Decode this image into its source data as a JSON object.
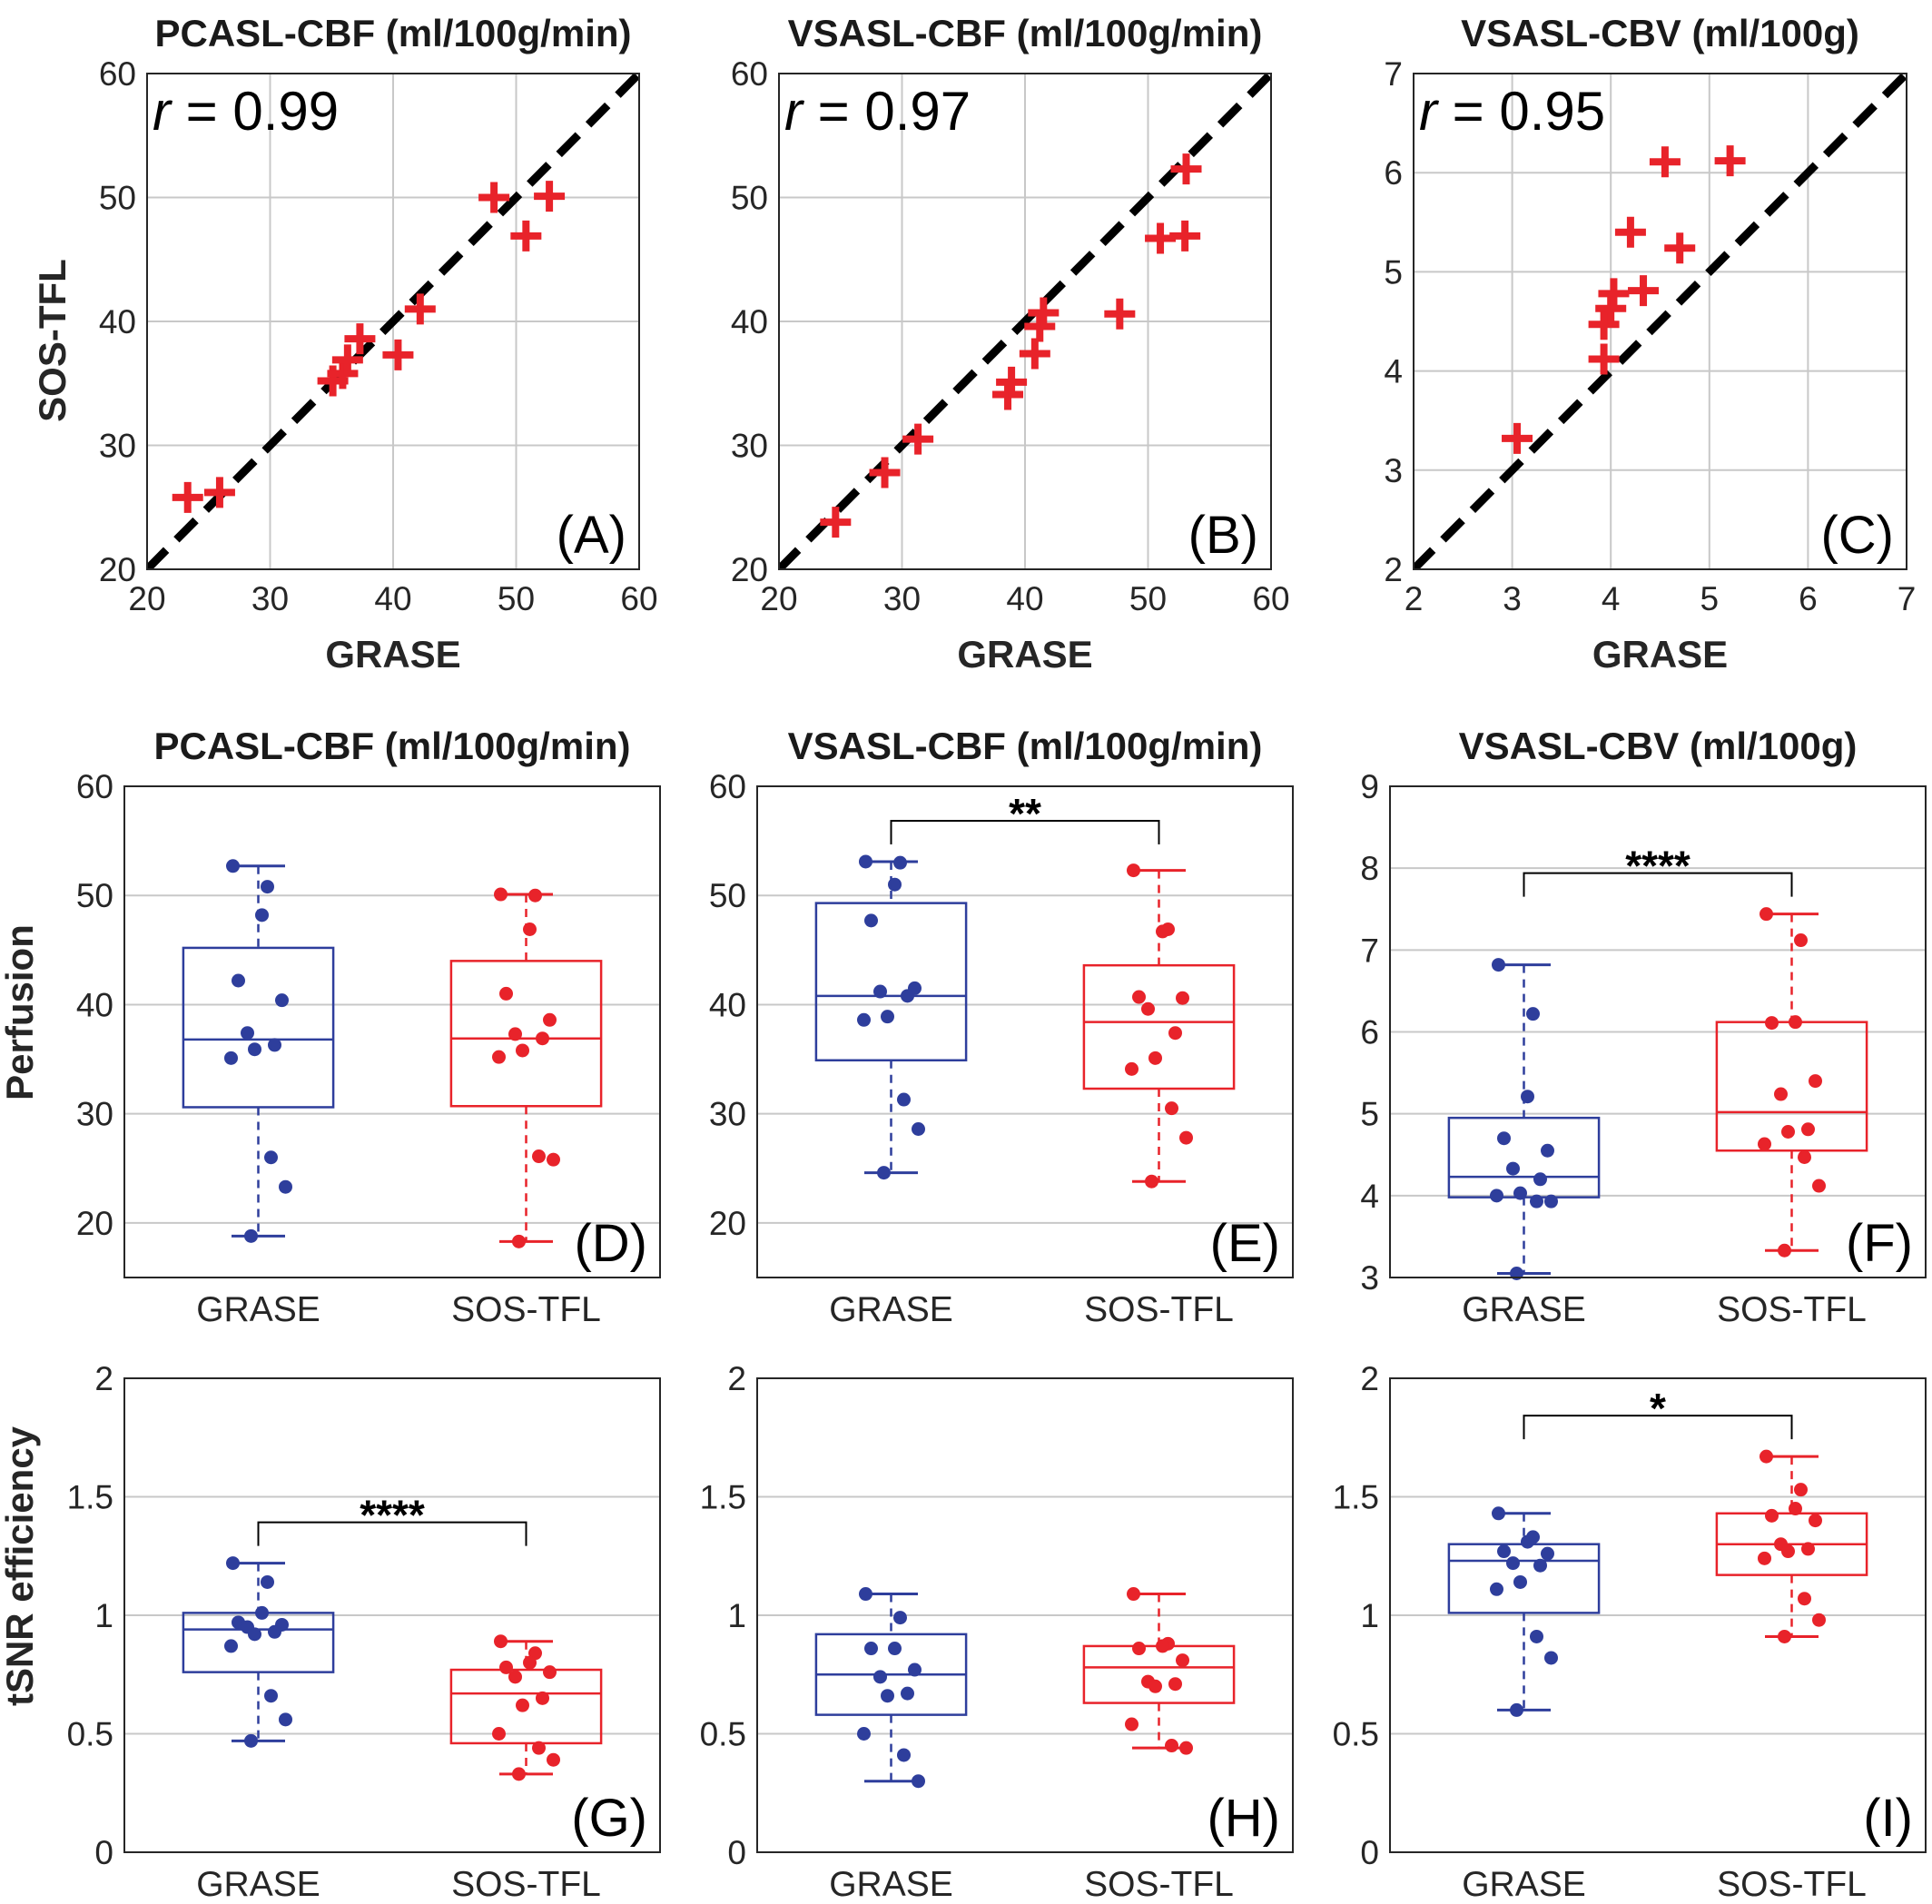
{
  "colors": {
    "grase": "#2e3e9c",
    "sos": "#e8232a",
    "grid": "#c8c8c8",
    "identity": "#000000"
  },
  "row_labels": {
    "scatter_y": "SOS-TFL",
    "perfusion_y": "Perfusion",
    "tsnr_y": "tSNR efficiency"
  },
  "chart_data": [
    {
      "id": "A",
      "type": "scatter",
      "panel_label": "(A)",
      "title": "PCASL-CBF (ml/100g/min)",
      "xlabel": "GRASE",
      "ylabel": "SOS-TFL",
      "xlim": [
        20,
        60
      ],
      "ylim": [
        20,
        60
      ],
      "xticks": [
        20,
        30,
        40,
        50,
        60
      ],
      "yticks": [
        20,
        30,
        40,
        50,
        60
      ],
      "grid": true,
      "r_label": "r",
      "r_value": "= 0.99",
      "identity_line": true,
      "x": [
        23.3,
        25.9,
        35.1,
        35.9,
        36.3,
        37.3,
        40.4,
        42.2,
        48.2,
        50.8,
        52.7
      ],
      "y": [
        25.8,
        26.2,
        35.2,
        35.8,
        36.9,
        38.6,
        37.3,
        41.0,
        50.0,
        46.9,
        50.1
      ]
    },
    {
      "id": "B",
      "type": "scatter",
      "panel_label": "(B)",
      "title": "VSASL-CBF (ml/100g/min)",
      "xlabel": "GRASE",
      "ylabel": "",
      "xlim": [
        20,
        60
      ],
      "ylim": [
        20,
        60
      ],
      "xticks": [
        20,
        30,
        40,
        50,
        60
      ],
      "yticks": [
        20,
        30,
        40,
        50,
        60
      ],
      "grid": true,
      "r_label": "r",
      "r_value": "= 0.97",
      "identity_line": true,
      "x": [
        24.6,
        28.6,
        31.3,
        38.6,
        38.9,
        40.8,
        41.2,
        41.5,
        47.7,
        51.0,
        53.0,
        53.1
      ],
      "y": [
        23.8,
        27.8,
        30.5,
        34.1,
        35.1,
        37.4,
        39.6,
        40.7,
        40.6,
        46.7,
        46.9,
        52.3
      ]
    },
    {
      "id": "C",
      "type": "scatter",
      "panel_label": "(C)",
      "title": "VSASL-CBV (ml/100g)",
      "xlabel": "GRASE",
      "ylabel": "",
      "xlim": [
        2,
        7
      ],
      "ylim": [
        2,
        7
      ],
      "xticks": [
        2,
        3,
        4,
        5,
        6,
        7
      ],
      "yticks": [
        2,
        3,
        4,
        5,
        6,
        7
      ],
      "grid": true,
      "r_label": "r",
      "r_value": "= 0.95",
      "identity_line": true,
      "x": [
        3.05,
        3.93,
        3.93,
        4.0,
        4.03,
        4.2,
        4.33,
        4.55,
        4.7,
        5.21
      ],
      "y": [
        3.32,
        4.12,
        4.47,
        4.63,
        4.78,
        5.4,
        4.81,
        6.11,
        5.24,
        6.12
      ]
    },
    {
      "id": "D",
      "type": "box",
      "panel_label": "(D)",
      "title": "PCASL-CBF (ml/100g/min)",
      "ylabel": "Perfusion",
      "ylim": [
        15,
        60
      ],
      "yticks": [
        20,
        30,
        40,
        50,
        60
      ],
      "categories": [
        "GRASE",
        "SOS-TFL"
      ],
      "grid": true,
      "significance": "",
      "series": [
        {
          "category": "GRASE",
          "min": 18.8,
          "q1": 30.6,
          "median": 36.8,
          "q3": 45.2,
          "max": 52.7,
          "points": [
            52.7,
            50.8,
            48.2,
            42.2,
            40.4,
            37.4,
            36.3,
            35.9,
            35.1,
            26.0,
            23.3,
            18.8
          ]
        },
        {
          "category": "SOS-TFL",
          "min": 18.3,
          "q1": 30.7,
          "median": 36.9,
          "q3": 44.0,
          "max": 50.1,
          "points": [
            50.1,
            50.0,
            46.9,
            41.0,
            38.6,
            37.3,
            36.9,
            35.8,
            35.2,
            26.1,
            25.8,
            18.3
          ]
        }
      ]
    },
    {
      "id": "E",
      "type": "box",
      "panel_label": "(E)",
      "title": "VSASL-CBF (ml/100g/min)",
      "ylabel": "",
      "ylim": [
        15,
        60
      ],
      "yticks": [
        20,
        30,
        40,
        50,
        60
      ],
      "categories": [
        "GRASE",
        "SOS-TFL"
      ],
      "grid": true,
      "significance": "**",
      "series": [
        {
          "category": "GRASE",
          "min": 24.6,
          "q1": 34.9,
          "median": 40.8,
          "q3": 49.3,
          "max": 53.1,
          "points": [
            53.1,
            53.0,
            51.0,
            47.7,
            41.5,
            41.2,
            40.8,
            38.9,
            38.6,
            31.3,
            28.6,
            24.6
          ]
        },
        {
          "category": "SOS-TFL",
          "min": 23.8,
          "q1": 32.3,
          "median": 38.4,
          "q3": 43.6,
          "max": 52.3,
          "points": [
            52.3,
            46.9,
            46.7,
            40.7,
            40.6,
            39.6,
            37.4,
            35.1,
            34.1,
            30.5,
            27.8,
            23.8
          ]
        }
      ]
    },
    {
      "id": "F",
      "type": "box",
      "panel_label": "(F)",
      "title": "VSASL-CBV (ml/100g)",
      "ylabel": "",
      "ylim": [
        3,
        9
      ],
      "yticks": [
        3,
        4,
        5,
        6,
        7,
        8,
        9
      ],
      "categories": [
        "GRASE",
        "SOS-TFL"
      ],
      "grid": true,
      "significance": "****",
      "series": [
        {
          "category": "GRASE",
          "min": 3.05,
          "q1": 3.98,
          "median": 4.23,
          "q3": 4.95,
          "max": 6.82,
          "points": [
            6.82,
            6.22,
            5.21,
            4.7,
            4.55,
            4.33,
            4.2,
            4.03,
            4.0,
            3.93,
            3.93,
            3.05
          ]
        },
        {
          "category": "SOS-TFL",
          "min": 3.33,
          "q1": 4.55,
          "median": 5.02,
          "q3": 6.12,
          "max": 7.44,
          "points": [
            7.44,
            7.12,
            6.12,
            6.11,
            5.4,
            5.24,
            4.81,
            4.78,
            4.63,
            4.47,
            4.12,
            3.33
          ]
        }
      ]
    },
    {
      "id": "G",
      "type": "box",
      "panel_label": "(G)",
      "title": "",
      "ylabel": "tSNR efficiency",
      "ylim": [
        0,
        2
      ],
      "yticks": [
        0,
        0.5,
        1,
        1.5,
        2
      ],
      "ytick_labels": [
        "0",
        "0.5",
        "1",
        "1.5",
        "2"
      ],
      "categories": [
        "GRASE",
        "SOS-TFL"
      ],
      "grid": true,
      "significance": "****",
      "series": [
        {
          "category": "GRASE",
          "min": 0.47,
          "q1": 0.76,
          "median": 0.94,
          "q3": 1.01,
          "max": 1.22,
          "points": [
            1.22,
            1.14,
            1.01,
            0.97,
            0.96,
            0.95,
            0.93,
            0.92,
            0.87,
            0.66,
            0.56,
            0.47
          ]
        },
        {
          "category": "SOS-TFL",
          "min": 0.33,
          "q1": 0.46,
          "median": 0.67,
          "q3": 0.77,
          "max": 0.89,
          "points": [
            0.89,
            0.84,
            0.8,
            0.78,
            0.76,
            0.74,
            0.65,
            0.62,
            0.5,
            0.44,
            0.39,
            0.33
          ]
        }
      ]
    },
    {
      "id": "H",
      "type": "box",
      "panel_label": "(H)",
      "title": "",
      "ylabel": "",
      "ylim": [
        0,
        2
      ],
      "yticks": [
        0,
        0.5,
        1,
        1.5,
        2
      ],
      "ytick_labels": [
        "0",
        "0.5",
        "1",
        "1.5",
        "2"
      ],
      "categories": [
        "GRASE",
        "SOS-TFL"
      ],
      "grid": true,
      "significance": "",
      "series": [
        {
          "category": "GRASE",
          "min": 0.3,
          "q1": 0.58,
          "median": 0.75,
          "q3": 0.92,
          "max": 1.09,
          "points": [
            1.09,
            0.99,
            0.86,
            0.86,
            0.77,
            0.74,
            0.67,
            0.66,
            0.5,
            0.41,
            0.3
          ]
        },
        {
          "category": "SOS-TFL",
          "min": 0.44,
          "q1": 0.63,
          "median": 0.78,
          "q3": 0.87,
          "max": 1.09,
          "points": [
            1.09,
            0.88,
            0.87,
            0.86,
            0.81,
            0.72,
            0.71,
            0.7,
            0.54,
            0.45,
            0.44
          ]
        }
      ]
    },
    {
      "id": "I",
      "type": "box",
      "panel_label": "(I)",
      "title": "",
      "ylabel": "",
      "ylim": [
        0,
        2
      ],
      "yticks": [
        0,
        0.5,
        1,
        1.5,
        2
      ],
      "ytick_labels": [
        "0",
        "0.5",
        "1",
        "1.5",
        "2"
      ],
      "categories": [
        "GRASE",
        "SOS-TFL"
      ],
      "grid": true,
      "significance": "*",
      "series": [
        {
          "category": "GRASE",
          "min": 0.6,
          "q1": 1.01,
          "median": 1.23,
          "q3": 1.3,
          "max": 1.43,
          "points": [
            1.43,
            1.33,
            1.31,
            1.27,
            1.26,
            1.22,
            1.21,
            1.14,
            1.11,
            0.91,
            0.82,
            0.6
          ]
        },
        {
          "category": "SOS-TFL",
          "min": 0.91,
          "q1": 1.17,
          "median": 1.3,
          "q3": 1.43,
          "max": 1.67,
          "points": [
            1.67,
            1.53,
            1.45,
            1.42,
            1.4,
            1.3,
            1.28,
            1.27,
            1.24,
            1.07,
            0.98,
            0.91
          ]
        }
      ]
    }
  ]
}
